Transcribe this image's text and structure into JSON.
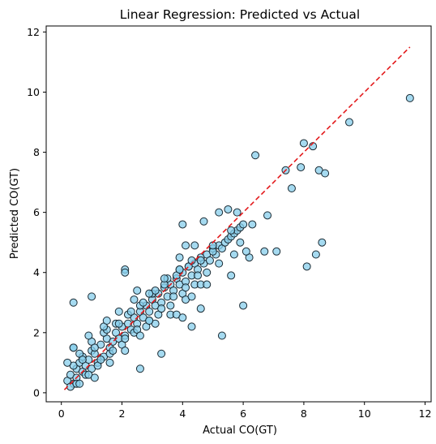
{
  "chart_data": {
    "type": "scatter",
    "title": "Linear Regression: Predicted vs Actual",
    "xlabel": "Actual CO(GT)",
    "ylabel": "Predicted CO(GT)",
    "xlim": [
      -0.5,
      12.2
    ],
    "ylim": [
      -0.3,
      12.2
    ],
    "xticks": [
      0,
      2,
      4,
      6,
      8,
      10,
      12
    ],
    "yticks": [
      0,
      2,
      4,
      6,
      8,
      10,
      12
    ],
    "grid": false,
    "point_fill": "#87CEEB",
    "point_edge": "#1a2a33",
    "reference_line": {
      "style": "dashed",
      "color": "#e31a1c",
      "from": [
        0.1,
        0.1
      ],
      "to": [
        11.5,
        11.5
      ]
    },
    "x": [
      0.2,
      0.3,
      0.4,
      0.5,
      0.5,
      0.6,
      0.7,
      0.7,
      0.8,
      0.9,
      1.0,
      1.0,
      1.1,
      1.2,
      1.3,
      1.4,
      1.5,
      1.6,
      1.7,
      1.8,
      1.9,
      2.0,
      2.1,
      2.2,
      2.3,
      2.4,
      2.5,
      2.6,
      2.7,
      2.8,
      2.9,
      3.0,
      3.1,
      3.2,
      3.3,
      3.4,
      3.5,
      3.6,
      3.7,
      3.8,
      3.9,
      4.0,
      4.1,
      4.2,
      4.3,
      4.4,
      4.5,
      4.6,
      4.7,
      4.8,
      4.9,
      5.0,
      5.1,
      5.2,
      5.3,
      5.4,
      5.5,
      5.6,
      5.7,
      5.8,
      5.9,
      6.0,
      0.4,
      0.6,
      0.8,
      1.0,
      1.2,
      1.4,
      1.6,
      1.8,
      2.0,
      2.2,
      2.4,
      2.6,
      2.8,
      3.0,
      3.2,
      3.4,
      3.6,
      3.8,
      4.0,
      4.2,
      4.4,
      4.6,
      4.8,
      5.0,
      0.3,
      0.5,
      0.7,
      0.9,
      1.1,
      1.3,
      1.5,
      1.7,
      1.9,
      2.1,
      2.3,
      2.5,
      2.7,
      2.9,
      3.1,
      3.3,
      3.5,
      3.7,
      3.9,
      4.1,
      4.3,
      4.5,
      0.4,
      0.9,
      1.4,
      1.9,
      2.4,
      2.9,
      3.4,
      3.9,
      4.4,
      0.6,
      1.1,
      1.6,
      2.1,
      2.6,
      3.1,
      3.6,
      4.1,
      4.6,
      0.2,
      0.4,
      1.0,
      0.4,
      1.5,
      2.1,
      2.1,
      2.6,
      3.3,
      2.5,
      2.9,
      3.8,
      4.0,
      4.3,
      4.6,
      5.2,
      5.3,
      5.5,
      5.8,
      5.9,
      6.0,
      6.3,
      6.4,
      6.7,
      6.8,
      7.1,
      7.4,
      7.6,
      7.9,
      8.0,
      8.1,
      8.3,
      8.4,
      8.5,
      8.6,
      8.7,
      9.5,
      11.5,
      6.2,
      5.7,
      5.6,
      5.2,
      5.0,
      4.7,
      4.8,
      5.6,
      6.1,
      4.0,
      4.1,
      3.9,
      4.3
    ],
    "y": [
      0.4,
      0.6,
      0.3,
      0.8,
      0.5,
      1.0,
      0.7,
      1.2,
      0.9,
      1.1,
      1.4,
      0.8,
      1.3,
      1.0,
      1.6,
      1.2,
      1.8,
      1.5,
      1.7,
      2.0,
      1.8,
      2.2,
      1.9,
      2.3,
      2.1,
      2.5,
      2.3,
      2.7,
      2.5,
      2.9,
      2.7,
      3.1,
      2.9,
      3.3,
      3.0,
      3.5,
      3.2,
      3.6,
      3.4,
      3.8,
      3.6,
      4.0,
      3.7,
      4.2,
      3.9,
      4.3,
      4.1,
      4.5,
      4.3,
      4.6,
      4.4,
      4.8,
      4.6,
      4.9,
      4.8,
      5.0,
      5.1,
      5.2,
      5.3,
      5.4,
      5.5,
      5.6,
      0.9,
      1.3,
      0.6,
      1.7,
      0.9,
      2.0,
      1.3,
      2.3,
      1.6,
      2.6,
      2.0,
      2.9,
      2.2,
      3.3,
      2.6,
      3.6,
      2.9,
      3.9,
      3.3,
      4.2,
      3.6,
      4.4,
      4.0,
      4.7,
      0.2,
      0.3,
      1.1,
      0.6,
      1.5,
      1.1,
      2.1,
      1.4,
      2.3,
      1.8,
      2.7,
      2.1,
      3.0,
      2.4,
      3.4,
      2.8,
      3.8,
      3.2,
      4.1,
      3.5,
      4.4,
      3.9,
      1.5,
      1.9,
      2.2,
      2.7,
      3.1,
      3.3,
      3.8,
      4.1,
      4.9,
      0.3,
      0.5,
      1.0,
      1.4,
      1.9,
      2.3,
      2.6,
      3.1,
      3.6,
      1.0,
      3.0,
      3.2,
      1.5,
      2.4,
      4.1,
      4.0,
      0.8,
      1.3,
      3.4,
      2.4,
      2.6,
      2.5,
      2.2,
      2.8,
      4.3,
      1.9,
      6.1,
      6.0,
      5.0,
      2.9,
      5.6,
      7.9,
      4.7,
      5.9,
      4.7,
      7.4,
      6.8,
      7.5,
      8.3,
      4.2,
      8.2,
      4.6,
      7.4,
      5.0,
      7.3,
      9.0,
      9.8,
      4.5,
      4.6,
      3.9,
      6.0,
      4.9,
      5.7,
      3.6,
      5.4,
      4.7,
      5.6,
      4.9,
      4.5,
      3.2
    ]
  }
}
